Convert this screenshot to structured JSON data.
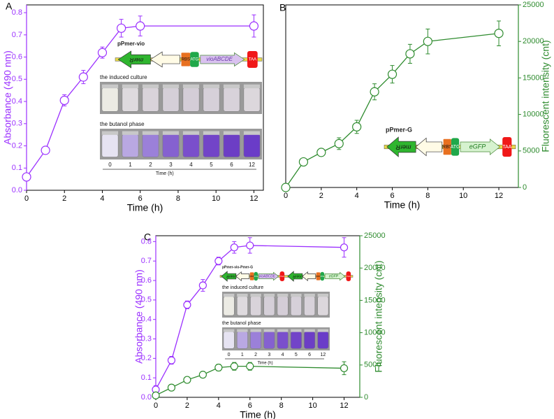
{
  "chart_data": [
    {
      "type": "line",
      "panel": "A",
      "x": [
        0,
        1,
        2,
        3,
        4,
        5,
        6,
        12
      ],
      "xlim": [
        0,
        12.5
      ],
      "xticks": [
        0,
        2,
        4,
        6,
        8,
        10,
        12
      ],
      "xlabel": "Time (h)",
      "ylim": [
        0,
        0.835
      ],
      "yticks": [
        {
          "value": 0,
          "label": "0.0"
        },
        0.1,
        0.2,
        0.3,
        0.4,
        0.5,
        0.6,
        0.7,
        0.8
      ],
      "ylabel": "Absorbance (490 nm)",
      "series": [
        {
          "color": "#9b30ff",
          "values": [
            0.06,
            0.18,
            0.405,
            0.51,
            0.62,
            0.73,
            0.74,
            0.74
          ],
          "errors": [
            0.015,
            0.01,
            0.025,
            0.03,
            0.025,
            0.04,
            0.045,
            0.05
          ]
        }
      ],
      "inset": {
        "construct": "pPmer-vio",
        "parts": [
          "merR",
          "RBS",
          "ATG",
          "vioABCDE",
          "TAA"
        ],
        "photo_labels": [
          "the induced culture",
          "the butanol phase"
        ],
        "lane_labels": [
          0,
          1,
          2,
          3,
          4,
          5,
          6,
          12
        ],
        "lane_title": "Time (h)"
      }
    },
    {
      "type": "line",
      "panel": "B",
      "x": [
        0,
        1,
        2,
        3,
        4,
        5,
        6,
        7,
        8,
        12
      ],
      "xlim": [
        0,
        13.1
      ],
      "xticks": [
        0,
        2,
        4,
        6,
        8,
        10,
        12
      ],
      "xlabel": "Time (h)",
      "y2lim": [
        0,
        25000
      ],
      "y2ticks": [
        0,
        5000,
        10000,
        15000,
        20000,
        25000
      ],
      "y2label": "Fluorescent intensity (cnt)",
      "series": [
        {
          "color": "#2e8b2e",
          "axis": "y2",
          "values": [
            0,
            3500,
            4800,
            6000,
            8300,
            13100,
            15500,
            18300,
            20000,
            21100
          ],
          "errors": [
            200,
            400,
            500,
            800,
            900,
            1100,
            1200,
            1300,
            1700,
            1700
          ]
        }
      ],
      "inset": {
        "construct": "pPmer-G",
        "parts": [
          "merR",
          "RBS",
          "ATG",
          "eGFP",
          "TAA"
        ]
      }
    },
    {
      "type": "line",
      "panel": "C",
      "x": [
        0,
        1,
        2,
        3,
        4,
        5,
        6,
        12
      ],
      "xlim": [
        0,
        13
      ],
      "xticks": [
        0,
        2,
        4,
        6,
        8,
        10,
        12
      ],
      "xlabel": "Time (h)",
      "ylim": [
        0,
        0.83
      ],
      "yticks": [
        {
          "value": 0,
          "label": "0.0"
        },
        0.1,
        0.2,
        0.3,
        0.4,
        0.5,
        0.6,
        0.7,
        0.8
      ],
      "ylabel": "Absorbance (490 nm)",
      "y2lim": [
        0,
        25000
      ],
      "y2ticks": [
        0,
        5000,
        10000,
        15000,
        20000,
        25000
      ],
      "y2label": "Fluorescent intensity (cnt)",
      "series": [
        {
          "color": "#9b30ff",
          "values": [
            0.04,
            0.19,
            0.475,
            0.575,
            0.7,
            0.77,
            0.78,
            0.77
          ],
          "errors": [
            0.02,
            0.02,
            0.02,
            0.03,
            0.02,
            0.03,
            0.04,
            0.05
          ]
        },
        {
          "color": "#2e8b2e",
          "axis": "y2",
          "values": [
            300,
            1500,
            2700,
            3500,
            4600,
            4800,
            4800,
            4500
          ],
          "errors": [
            200,
            400,
            400,
            400,
            500,
            600,
            600,
            1000
          ]
        }
      ],
      "inset": {
        "construct": "pPmer-vio-Pmer-G",
        "parts": [
          "merR",
          "RBS",
          "ATG",
          "vioABCDE",
          "TAA",
          "merR",
          "RBS",
          "ATG",
          "eGFP",
          "TAA"
        ],
        "photo_labels": [
          "the induced culture",
          "the butanol phase"
        ],
        "lane_labels": [
          0,
          1,
          2,
          3,
          4,
          5,
          6,
          12
        ],
        "lane_title": "Time (h)"
      }
    }
  ]
}
